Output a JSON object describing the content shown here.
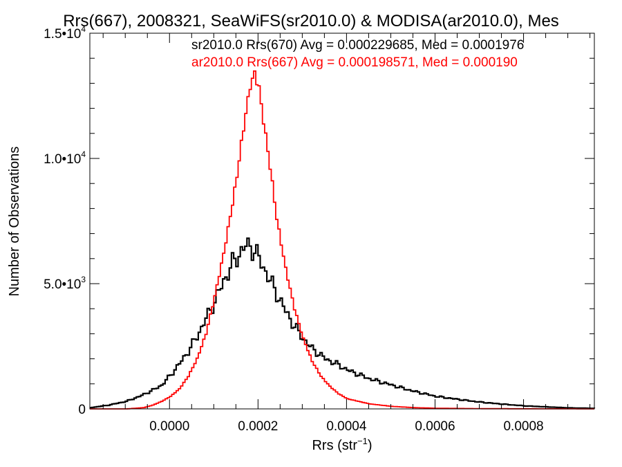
{
  "chart_data": {
    "type": "line",
    "title": "Rrs(667), 2008321, SeaWiFS(sr2010.0) & MODISA(ar2010.0), Mes",
    "xlabel_main": "Rrs (str",
    "xlabel_sup": "−1",
    "xlabel_close": ")",
    "ylabel": "Number of Observations",
    "xlim": [
      -0.00018,
      0.00096
    ],
    "ylim": [
      0,
      15000
    ],
    "x_ticks": [
      {
        "value": 0.0,
        "label": "0.0000"
      },
      {
        "value": 0.0002,
        "label": "0.0002"
      },
      {
        "value": 0.0004,
        "label": "0.0004"
      },
      {
        "value": 0.0006,
        "label": "0.0006"
      },
      {
        "value": 0.0008,
        "label": "0.0008"
      }
    ],
    "y_ticks": [
      {
        "value": 0,
        "mantissa": "0",
        "exp": ""
      },
      {
        "value": 5000,
        "mantissa": "5.0•10",
        "exp": "3"
      },
      {
        "value": 10000,
        "mantissa": "1.0•10",
        "exp": "4"
      },
      {
        "value": 15000,
        "mantissa": "1.5•10",
        "exp": "4"
      }
    ],
    "series": [
      {
        "name": "sr2010.0 Rrs(670) Avg = 0.000229685, Med = 0.0001976",
        "color": "#000000",
        "x": [
          -0.00018,
          -0.00014,
          -0.0001,
          -7e-05,
          -4e-05,
          -2e-05,
          0.0,
          2e-05,
          4e-05,
          6e-05,
          8e-05,
          0.0001,
          0.00012,
          0.00014,
          0.00016,
          0.00017,
          0.00018,
          0.00019,
          0.0002,
          0.00022,
          0.00024,
          0.00026,
          0.00028,
          0.0003,
          0.00032,
          0.00035,
          0.00038,
          0.0004,
          0.00045,
          0.0005,
          0.00055,
          0.0006,
          0.00065,
          0.0007,
          0.00075,
          0.0008,
          0.00085,
          0.0009,
          0.00096
        ],
        "values": [
          50,
          150,
          300,
          500,
          750,
          950,
          1350,
          1800,
          2300,
          2900,
          3600,
          4300,
          5100,
          5800,
          6300,
          6500,
          6500,
          6300,
          6000,
          5300,
          4600,
          3900,
          3300,
          2800,
          2400,
          2000,
          1750,
          1550,
          1200,
          950,
          700,
          500,
          380,
          270,
          190,
          120,
          80,
          40,
          20
        ]
      },
      {
        "name": "ar2010.0 Rrs(667) Avg = 0.000198571, Med = 0.000190",
        "color": "#ff0000",
        "x": [
          -0.00018,
          -0.0001,
          -6e-05,
          -4e-05,
          -2e-05,
          0.0,
          2e-05,
          4e-05,
          6e-05,
          8e-05,
          0.0001,
          0.00012,
          0.00014,
          0.00015,
          0.00016,
          0.00017,
          0.00018,
          0.00019,
          0.0002,
          0.00021,
          0.00022,
          0.00023,
          0.00024,
          0.00026,
          0.00028,
          0.0003,
          0.00032,
          0.00034,
          0.00036,
          0.00038,
          0.0004,
          0.00045,
          0.0005,
          0.00055,
          0.0006,
          0.0007,
          0.0008,
          0.00096
        ],
        "values": [
          0,
          0,
          50,
          150,
          300,
          500,
          800,
          1300,
          2000,
          3000,
          4500,
          6200,
          8200,
          9300,
          10600,
          11800,
          12900,
          13400,
          12800,
          11500,
          10300,
          9000,
          7600,
          5600,
          4000,
          2800,
          1900,
          1300,
          900,
          600,
          400,
          200,
          100,
          50,
          25,
          10,
          5,
          0
        ]
      }
    ]
  }
}
